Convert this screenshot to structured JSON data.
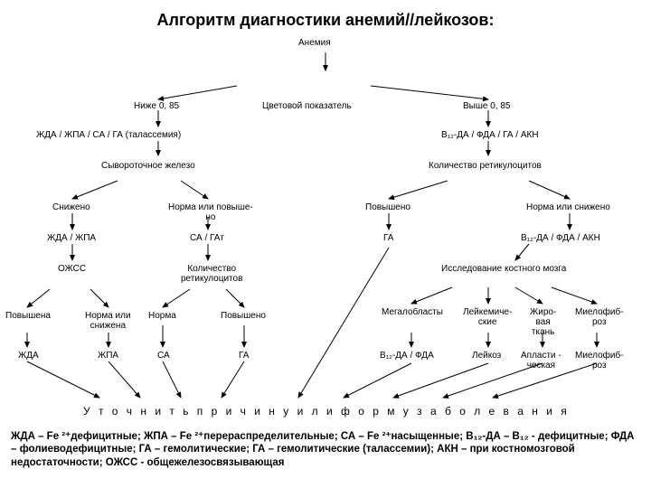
{
  "title": "Алгоритм диагностики анемий//лейкозов:",
  "nodes": {
    "r0a": "Анемия",
    "r1a": "Ниже 0, 85",
    "r1b": "Цветовой показатель",
    "r1c": "Выше 0, 85",
    "r2a": "ЖДА / ЖПА / СА / ГА (талассемия)",
    "r2b": "В₁₂‑ДА / ФДА / ГА / АКН",
    "r3a": "Сывороточное железо",
    "r3b": "Количество ретикулоцитов",
    "r4a": "Снижено",
    "r4b": "Норма или повыше-\nно",
    "r4c": "Повышено",
    "r4d": "Норма или снижено",
    "r5a": "ЖДА / ЖПА",
    "r5b": "СА / ГАт",
    "r5c": "ГА",
    "r5d": "В₁₂‑ДА / ФДА / АКН",
    "r6a": "ОЖСС",
    "r6b": "Количество\nретикулоцитов",
    "r6c": "Исследование костного мозга",
    "r7a": "Повышена",
    "r7b": "Норма или\nснижена",
    "r7c": "Норма",
    "r7d": "Повышено",
    "r7e": "Мегалобласты",
    "r7f": "Лейкемиче-\nские",
    "r7g": "Жиро-\nвая\nткань",
    "r7h": "Миелофиб-\nроз",
    "r8a": "ЖДА",
    "r8b": "ЖПА",
    "r8c": "СА",
    "r8d": "ГА",
    "r8e": "В₁₂‑ДА / ФДА",
    "r8f": "Лейкоз",
    "r8g": "Апласти -\nческая",
    "r8h": "Миелофиб-\nроз"
  },
  "bottom_phrase": "У т о ч н и т ь   п р и ч и н у   и л и   ф о р м у   з а б о л е в а н и я",
  "legend_text": "ЖДА – Fe ²⁺дефицитные; ЖПА – Fe ²⁺перераспределительные; СА – Fe ²⁺насыщенные; В₁₂‑ДА – В₁₂ - дефицитные; ФДА – фолиеводефицитные; ГА – гемолитические; ГА – гемолитические (талассемии); АКН – при костномозговой недостаточности; ОЖСС - общежелезосвязывающая",
  "arrows": [
    [
      360,
      18,
      360,
      38
    ],
    [
      262,
      55,
      175,
      70
    ],
    [
      410,
      55,
      540,
      70
    ],
    [
      175,
      82,
      175,
      100
    ],
    [
      540,
      82,
      540,
      100
    ],
    [
      175,
      116,
      175,
      132
    ],
    [
      540,
      116,
      540,
      132
    ],
    [
      130,
      160,
      80,
      180
    ],
    [
      200,
      160,
      230,
      180
    ],
    [
      495,
      160,
      430,
      180
    ],
    [
      585,
      160,
      630,
      180
    ],
    [
      80,
      196,
      80,
      214
    ],
    [
      230,
      200,
      230,
      214
    ],
    [
      430,
      196,
      430,
      214
    ],
    [
      630,
      196,
      630,
      214
    ],
    [
      80,
      230,
      80,
      248
    ],
    [
      230,
      230,
      230,
      248
    ],
    [
      585,
      230,
      570,
      248
    ],
    [
      55,
      280,
      30,
      300
    ],
    [
      100,
      280,
      120,
      300
    ],
    [
      210,
      280,
      180,
      300
    ],
    [
      250,
      280,
      270,
      300
    ],
    [
      500,
      278,
      455,
      296
    ],
    [
      540,
      278,
      540,
      296
    ],
    [
      570,
      278,
      600,
      296
    ],
    [
      610,
      278,
      660,
      296
    ],
    [
      30,
      328,
      30,
      344
    ],
    [
      120,
      328,
      120,
      344
    ],
    [
      180,
      320,
      180,
      344
    ],
    [
      270,
      320,
      270,
      344
    ],
    [
      455,
      328,
      455,
      344
    ],
    [
      540,
      328,
      540,
      344
    ],
    [
      600,
      328,
      600,
      344
    ],
    [
      660,
      328,
      660,
      344
    ],
    [
      30,
      360,
      110,
      400
    ],
    [
      120,
      360,
      155,
      400
    ],
    [
      180,
      360,
      200,
      400
    ],
    [
      270,
      360,
      245,
      400
    ],
    [
      430,
      234,
      330,
      400
    ],
    [
      455,
      362,
      380,
      400
    ],
    [
      540,
      362,
      435,
      400
    ],
    [
      600,
      362,
      490,
      400
    ],
    [
      660,
      362,
      545,
      400
    ]
  ],
  "colors": {
    "stroke": "#000000",
    "bg": "#ffffff"
  }
}
